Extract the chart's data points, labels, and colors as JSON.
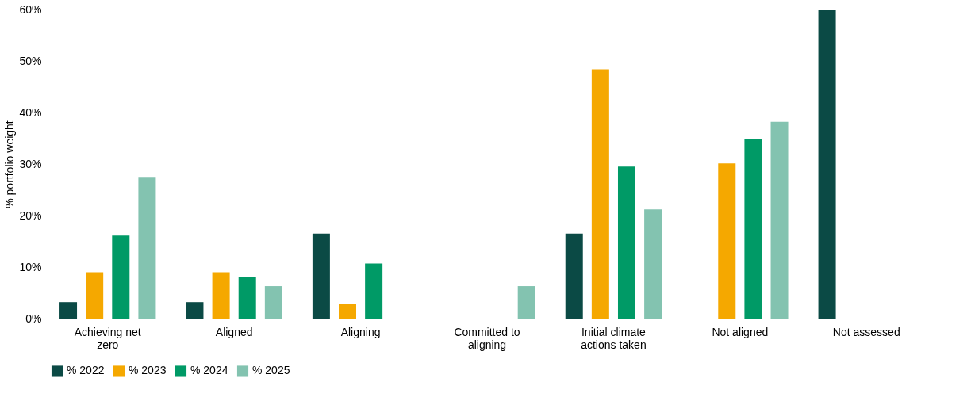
{
  "chart_data": {
    "type": "bar",
    "ylabel": "% portfolio weight",
    "categories": [
      "Achieving net zero",
      "Aligned",
      "Aligning",
      "Committed to aligning",
      "Initial climate actions taken",
      "Not aligned",
      "Not assessed"
    ],
    "series": [
      {
        "name": "% 2022",
        "color": "#0b4a45",
        "values": [
          3.2,
          3.2,
          16.5,
          null,
          16.5,
          null,
          60
        ]
      },
      {
        "name": "% 2023",
        "color": "#f5a800",
        "values": [
          9.0,
          9.0,
          2.9,
          null,
          48.4,
          30.1,
          null
        ]
      },
      {
        "name": "% 2024",
        "color": "#009a66",
        "values": [
          16.1,
          8.0,
          10.7,
          null,
          29.5,
          34.9,
          null
        ]
      },
      {
        "name": "% 2025",
        "color": "#83c3b0",
        "values": [
          27.5,
          6.3,
          null,
          6.3,
          21.2,
          38.2,
          null
        ]
      }
    ],
    "ylim": [
      0,
      60
    ],
    "yticks": [
      {
        "value": 0,
        "label": "0%"
      },
      {
        "value": 10,
        "label": "10%"
      },
      {
        "value": 20,
        "label": "20%"
      },
      {
        "value": 30,
        "label": "30%"
      },
      {
        "value": 40,
        "label": "40%"
      },
      {
        "value": 50,
        "label": "50%"
      },
      {
        "value": 60,
        "label": "60%"
      }
    ],
    "grid": false,
    "legend": "bottom"
  }
}
